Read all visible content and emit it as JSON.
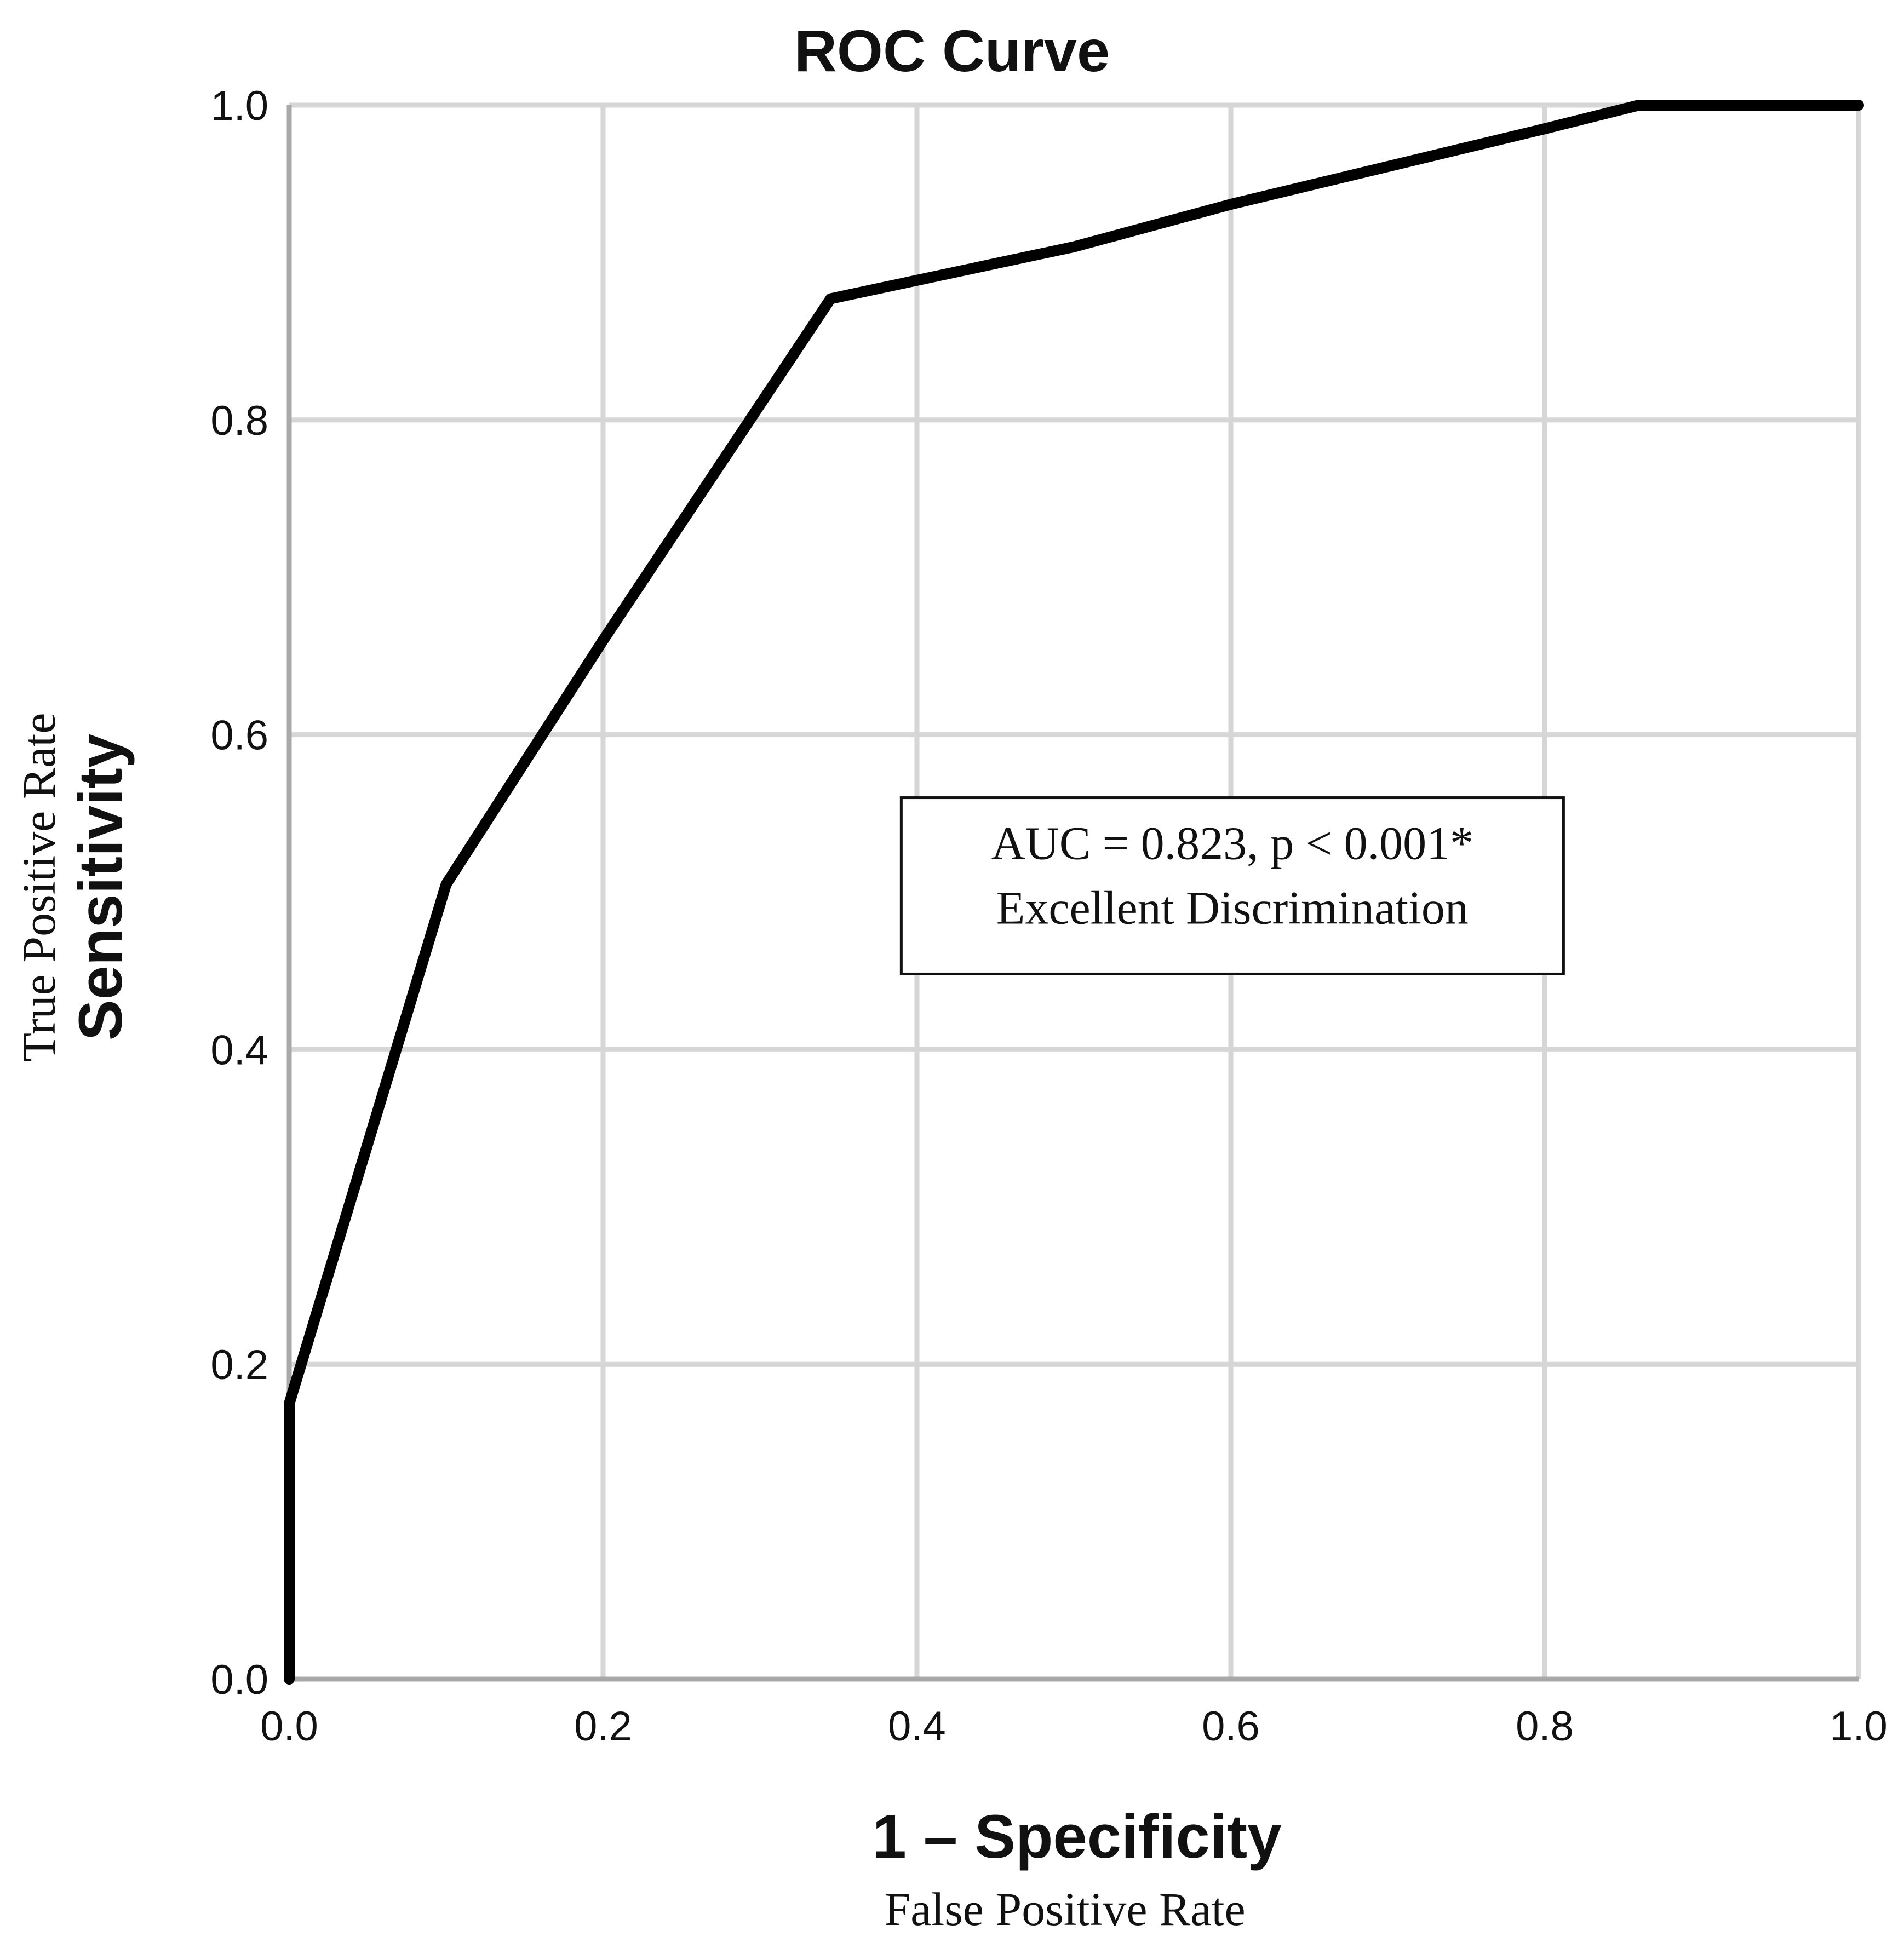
{
  "chart_data": {
    "type": "line",
    "title": "ROC Curve",
    "xlabel": "1 – Specificity",
    "xlabel_sub": "False Positive Rate",
    "ylabel": "Sensitivity",
    "ylabel_sub": "True Positive Rate",
    "xlim": [
      0,
      1
    ],
    "ylim": [
      0,
      1
    ],
    "xticks": [
      0.0,
      0.2,
      0.4,
      0.6,
      0.8,
      1.0
    ],
    "yticks": [
      0.0,
      0.2,
      0.4,
      0.6,
      0.8,
      1.0
    ],
    "xtick_labels": [
      "0.0",
      "0.2",
      "0.4",
      "0.6",
      "0.8",
      "1.0"
    ],
    "ytick_labels": [
      "0.0",
      "0.2",
      "0.4",
      "0.6",
      "0.8",
      "1.0"
    ],
    "grid": true,
    "series": [
      {
        "name": "ROC",
        "x": [
          0.0,
          0.0,
          0.1,
          0.2,
          0.345,
          0.5,
          0.6,
          0.8,
          0.86,
          1.0
        ],
        "y": [
          0.0,
          0.175,
          0.505,
          0.66,
          0.877,
          0.91,
          0.937,
          0.985,
          1.0,
          1.0
        ]
      }
    ],
    "annotation": {
      "line1": "AUC = 0.823, p < 0.001*",
      "line2": "Excellent Discrimination",
      "anchor_data": {
        "x0": 0.39,
        "y0": 0.448,
        "x1": 0.812,
        "y1": 0.56
      }
    }
  },
  "colors": {
    "curve": "#000000",
    "grid": "#d6d6d6",
    "axis": "#a9a9a9",
    "text": "#111111",
    "background": "#ffffff"
  }
}
